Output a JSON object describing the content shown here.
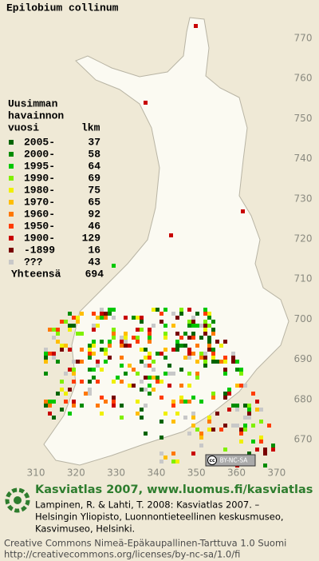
{
  "title": "Epilobium collinum",
  "legend": {
    "heading": [
      "Uusimman",
      "havainnon"
    ],
    "col_headers": [
      "vuosi",
      "lkm"
    ],
    "rows": [
      {
        "label": "2005-",
        "count": 37,
        "color": "#006400"
      },
      {
        "label": "2000-",
        "count": 58,
        "color": "#008c00"
      },
      {
        "label": "1995-",
        "count": 64,
        "color": "#00c800"
      },
      {
        "label": "1990-",
        "count": 69,
        "color": "#80f000"
      },
      {
        "label": "1980-",
        "count": 75,
        "color": "#f0f000"
      },
      {
        "label": "1970-",
        "count": 65,
        "color": "#ffbe00"
      },
      {
        "label": "1960-",
        "count": 92,
        "color": "#ff7800"
      },
      {
        "label": "1950-",
        "count": 46,
        "color": "#ff3c00"
      },
      {
        "label": "1900-",
        "count": 129,
        "color": "#c80000"
      },
      {
        "label": "-1899",
        "count": 16,
        "color": "#780000"
      },
      {
        "label": "???",
        "count": 43,
        "color": "#c8c8c8"
      }
    ],
    "total_label": "Yhteensä",
    "total": 694
  },
  "axes": {
    "x_ticks": [
      310,
      320,
      330,
      340,
      350,
      360,
      370
    ],
    "y_ticks": [
      670,
      680,
      690,
      700,
      710,
      720,
      730,
      740,
      750,
      760,
      770
    ]
  },
  "license_badge": "BY-NC-SA",
  "footer": {
    "site": "Kasviatlas 2007, www.luomus.fi/kasviatlas",
    "citation": [
      "Lampinen, R. & Lahti, T. 2008: Kasviatlas 2007. –",
      "Helsingin Yliopisto, Luonnontieteellinen keskusmuseo,",
      "Kasvimuseo, Helsinki."
    ],
    "license": [
      "Creative Commons Nimeä-Epäkaupallinen-Tarttuva 1.0 Suomi",
      "http://creativecommons.org/licenses/by-nc-sa/1.0/fi"
    ]
  }
}
